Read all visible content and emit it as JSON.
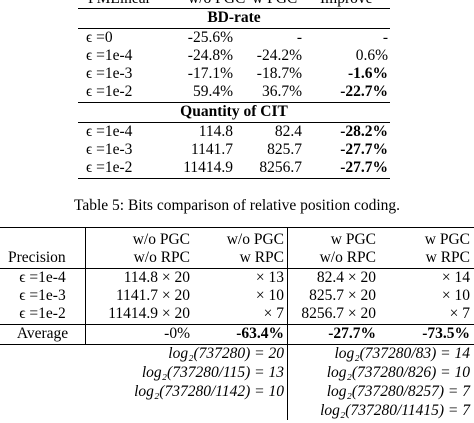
{
  "top_table": {
    "header_partial": [
      "PMLinear",
      "w/o PGC",
      "w PGC",
      "Improve"
    ],
    "bd_rate_title": "BD-rate",
    "bd_rows": [
      {
        "label": "ϵ =0",
        "a": "-25.6%",
        "b": "-",
        "c": "-",
        "c_bold": false
      },
      {
        "label": "ϵ =1e-4",
        "a": "-24.8%",
        "b": "-24.2%",
        "c": "0.6%",
        "c_bold": false
      },
      {
        "label": "ϵ =1e-3",
        "a": "-17.1%",
        "b": "-18.7%",
        "c": "-1.6%",
        "c_bold": true
      },
      {
        "label": "ϵ =1e-2",
        "a": "59.4%",
        "b": "36.7%",
        "c": "-22.7%",
        "c_bold": true
      }
    ],
    "cit_title": "Quantity of CIT",
    "cit_rows": [
      {
        "label": "ϵ =1e-4",
        "a": "114.8",
        "b": "82.4",
        "c": "-28.2%",
        "c_bold": true
      },
      {
        "label": "ϵ =1e-3",
        "a": "1141.7",
        "b": "825.7",
        "c": "-27.7%",
        "c_bold": true
      },
      {
        "label": "ϵ =1e-2",
        "a": "11414.9",
        "b": "8256.7",
        "c": "-27.7%",
        "c_bold": true
      }
    ]
  },
  "caption": "Table 5: Bits comparison of relative position coding.",
  "bottom_table": {
    "header": {
      "col0": "Precision",
      "col1_top": "w/o PGC",
      "col1_bot": "w/o RPC",
      "col2_top": "w/o PGC",
      "col2_bot": "w RPC",
      "col3_top": "w PGC",
      "col3_bot": "w/o RPC",
      "col4_top": "w PGC",
      "col4_bot": "w RPC"
    },
    "rows": [
      {
        "label": "ϵ =1e-4",
        "c1": "114.8 × 20",
        "c2": "× 13",
        "c3": "82.4 × 20",
        "c4": "× 14"
      },
      {
        "label": "ϵ =1e-3",
        "c1": "1141.7 × 20",
        "c2": "× 10",
        "c3": "825.7 × 20",
        "c4": "× 10"
      },
      {
        "label": "ϵ =1e-2",
        "c1": "11414.9 × 20",
        "c2": "× 7",
        "c3": "8256.7 × 20",
        "c4": "× 7"
      }
    ],
    "average": {
      "label": "Average",
      "c1": "-0%",
      "c2": "-63.4%",
      "c3": "-27.7%",
      "c4": "-73.5%"
    },
    "log_left": [
      "log₂(737280) = 20",
      "log₂(737280/115) = 13",
      "log₂(737280/1142) = 10"
    ],
    "log_right": [
      "log₂(737280/83) = 14",
      "log₂(737280/826) = 10",
      "log₂(737280/8257) = 7",
      "log₂(737280/11415) = 7"
    ]
  }
}
